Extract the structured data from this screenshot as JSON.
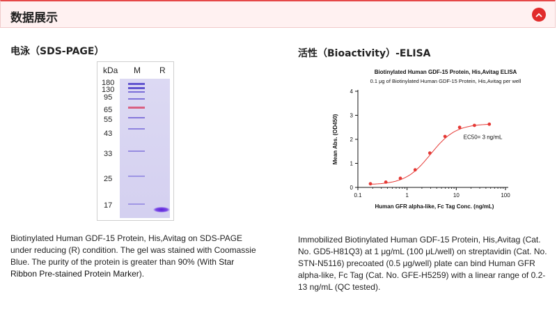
{
  "header": {
    "title": "数据展示"
  },
  "sds": {
    "title": "电泳（SDS-PAGE）",
    "unit_label": "kDa",
    "lane_m": "M",
    "lane_r": "R",
    "markers": [
      "180",
      "130",
      "95",
      "65",
      "55",
      "43",
      "33",
      "25",
      "17"
    ],
    "caption_pre": "Biotinylated Human GDF-15 Protein, His,Avitag on SDS-PAGE under reducing (R) condition. The gel was stained with Coomassie Blue. The purity of the protein is greater than 90% (With ",
    "caption_link": "Star Ribbon Pre-stained Protein Marker",
    "caption_post": ")."
  },
  "elisa": {
    "title": "活性（Bioactivity）-ELISA",
    "caption": "Immobilized Biotinylated Human GDF-15 Protein, His,Avitag (Cat. No. GD5-H81Q3) at 1 μg/mL (100 μL/well) on streptavidin (Cat. No. STN-N5116) precoated (0.5 μg/well) plate can bind Human GFR alpha-like, Fc Tag (Cat. No. GFE-H5259) with a linear range of 0.2-13 ng/mL (QC tested)."
  },
  "chart_data": {
    "type": "scatter",
    "title": "Biotinylated Human GDF-15 Protein, His,Avitag ELISA",
    "subtitle": "0.1 μg of Biotinylated Human GDF-15 Protein, His,Avitag per well",
    "xlabel": "Human GFR alpha-like, Fc Tag Conc. (ng/mL)",
    "ylabel": "Mean Abs. (OD450)",
    "xscale": "log",
    "xlim": [
      0.1,
      100
    ],
    "ylim": [
      0,
      4
    ],
    "xticks": [
      "0.1",
      "1",
      "10",
      "100"
    ],
    "yticks": [
      "0",
      "1",
      "2",
      "3",
      "4"
    ],
    "annotation": "EC50= 3 ng/mL",
    "point_color": "#e53935",
    "points": [
      {
        "x": 0.18,
        "y": 0.15
      },
      {
        "x": 0.37,
        "y": 0.22
      },
      {
        "x": 0.73,
        "y": 0.38
      },
      {
        "x": 1.46,
        "y": 0.73
      },
      {
        "x": 2.9,
        "y": 1.43
      },
      {
        "x": 5.9,
        "y": 2.12
      },
      {
        "x": 11.7,
        "y": 2.5
      },
      {
        "x": 23.4,
        "y": 2.58
      },
      {
        "x": 46.9,
        "y": 2.63
      }
    ],
    "fit": {
      "bottom": 0.11,
      "top": 2.65,
      "ec50": 3,
      "hill": 1.7
    }
  }
}
